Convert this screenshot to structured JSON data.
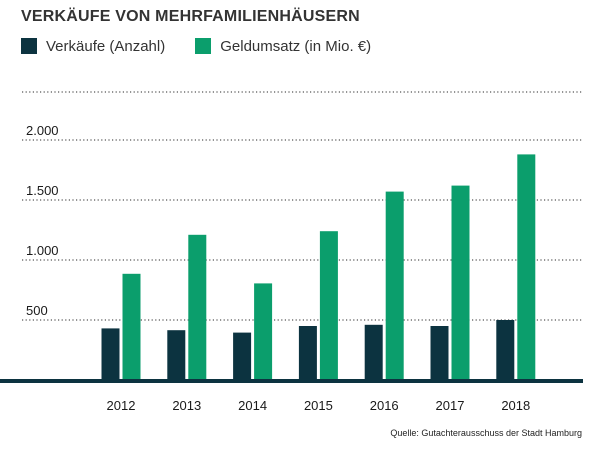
{
  "colors": {
    "series_1": "#0c3340",
    "series_2": "#0b9e6c",
    "baseline": "#0c3340",
    "grid": "#555555"
  },
  "chart_data": {
    "type": "bar",
    "title": "VERKÄUFE VON MEHRFAMILIENHÄUSERN",
    "categories": [
      "2012",
      "2013",
      "2014",
      "2015",
      "2016",
      "2017",
      "2018"
    ],
    "series": [
      {
        "name": "Verkäufe (Anzahl)",
        "values": [
          430,
          415,
          395,
          450,
          460,
          450,
          500
        ]
      },
      {
        "name": "Geldumsatz (in Mio. €)",
        "values": [
          885,
          1210,
          805,
          1240,
          1570,
          1620,
          1880
        ]
      }
    ],
    "ylim": [
      0,
      2400
    ],
    "yticks": [
      500,
      1000,
      1500,
      2000
    ],
    "ytick_labels": [
      "500",
      "1.000",
      "1.500",
      "2.000"
    ],
    "grid": true,
    "grid_style": "dotted",
    "legend_position": "top-left",
    "source": "Quelle: Gutachterausschuss der Stadt Hamburg"
  }
}
